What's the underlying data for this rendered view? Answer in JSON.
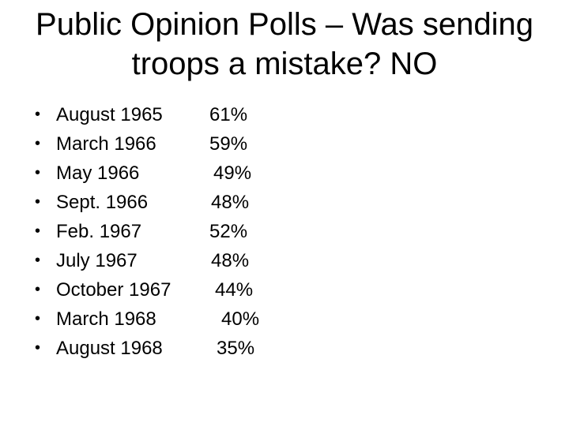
{
  "title": {
    "line1": "Public Opinion Polls – Was sending",
    "line2": "troops a mistake? NO"
  },
  "bullet_glyph": "•",
  "polls": [
    {
      "date": "August 1965",
      "percent": "61%"
    },
    {
      "date": "March 1966",
      "percent": "59%"
    },
    {
      "date": "May 1966",
      "percent": "49%"
    },
    {
      "date": "Sept. 1966",
      "percent": "48%"
    },
    {
      "date": "Feb. 1967",
      "percent": "52%"
    },
    {
      "date": "July 1967",
      "percent": "48%"
    },
    {
      "date": "October 1967",
      "percent": "44%"
    },
    {
      "date": "March 1968",
      "percent": "40%"
    },
    {
      "date": "August 1968",
      "percent": "35%"
    }
  ]
}
